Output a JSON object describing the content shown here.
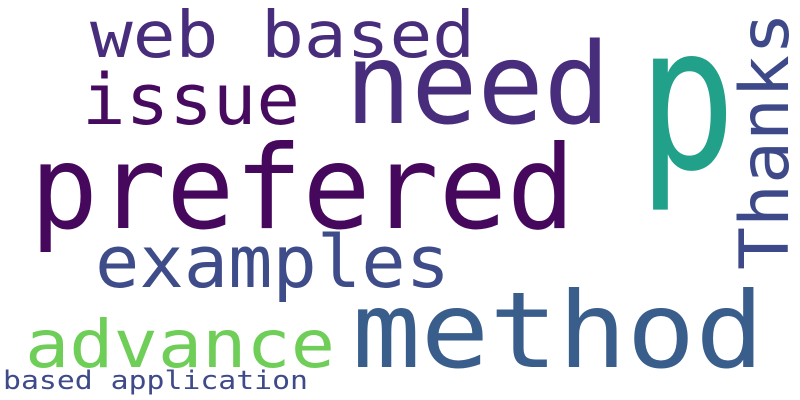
{
  "cloud": {
    "words": [
      {
        "id": "prefered",
        "text": "prefered",
        "color": "#46085c",
        "orientation": "horizontal"
      },
      {
        "id": "p",
        "text": "p",
        "color": "#21a08a",
        "orientation": "horizontal"
      },
      {
        "id": "method",
        "text": "method",
        "color": "#3a5e8c",
        "orientation": "horizontal"
      },
      {
        "id": "need",
        "text": "need",
        "color": "#472d7b",
        "orientation": "horizontal"
      },
      {
        "id": "web-based",
        "text": "web based",
        "color": "#472d7b",
        "orientation": "horizontal"
      },
      {
        "id": "issue",
        "text": "issue",
        "color": "#460b5e",
        "orientation": "horizontal"
      },
      {
        "id": "thanks",
        "text": "Thanks",
        "color": "#3e4989",
        "orientation": "vertical"
      },
      {
        "id": "examples",
        "text": "examples",
        "color": "#3e4c8a",
        "orientation": "horizontal"
      },
      {
        "id": "advance",
        "text": "advance",
        "color": "#6ece58",
        "orientation": "horizontal"
      },
      {
        "id": "based-application",
        "text": "based application",
        "color": "#3e4a89",
        "orientation": "horizontal"
      }
    ]
  }
}
